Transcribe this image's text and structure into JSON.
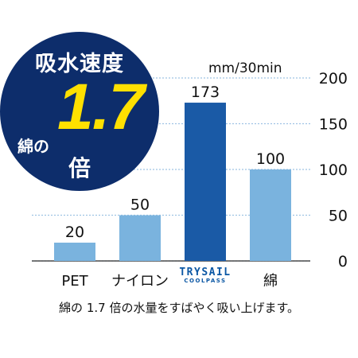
{
  "badge": {
    "title": "吸水速度",
    "prefix": "綿の",
    "big_value": "1.7",
    "suffix": "倍",
    "bg_color": "#0d2d6b",
    "value_color": "#ffe000"
  },
  "unit_label": "mm/30min",
  "caption": "綿の 1.7 倍の水量をすばやく吸い上げます。",
  "trysail_logo": {
    "main": "TRYSAIL",
    "sub": "COOLPASS"
  },
  "chart_data": {
    "type": "bar",
    "categories": [
      "PET",
      "ナイロン",
      "TRYSAIL",
      "綿"
    ],
    "values": [
      20,
      50,
      173,
      100
    ],
    "value_labels": [
      "20",
      "50",
      "173",
      "100"
    ],
    "ylim": [
      0,
      200
    ],
    "yticks": [
      0,
      50,
      100,
      150,
      200
    ],
    "grid": true,
    "bar_colors": [
      "#7ab3de",
      "#7ab3de",
      "#1a5aa6",
      "#7ab3de"
    ]
  }
}
